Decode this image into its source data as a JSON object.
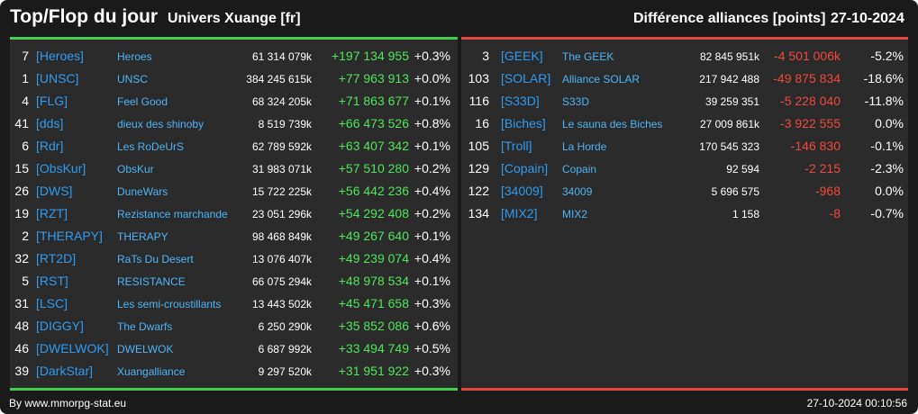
{
  "header": {
    "title": "Top/Flop du jour",
    "subtitle": "Univers Xuange [fr]",
    "diff_label": "Différence alliances [points]",
    "date": "27-10-2024"
  },
  "top": [
    {
      "rank": "7",
      "tag": "[Heroes]",
      "name": "Heroes",
      "points": "61 314 079k",
      "change": "+197 134 955",
      "pct": "+0.3%"
    },
    {
      "rank": "1",
      "tag": "[UNSC]",
      "name": "UNSC",
      "points": "384 245 615k",
      "change": "+77 963 913",
      "pct": "+0.0%"
    },
    {
      "rank": "4",
      "tag": "[FLG]",
      "name": "Feel Good",
      "points": "68 324 205k",
      "change": "+71 863 677",
      "pct": "+0.1%"
    },
    {
      "rank": "41",
      "tag": "[dds]",
      "name": "dieux des shinoby",
      "points": "8 519 739k",
      "change": "+66 473 526",
      "pct": "+0.8%"
    },
    {
      "rank": "6",
      "tag": "[Rdr]",
      "name": "Les RoDeUrS",
      "points": "62 789 592k",
      "change": "+63 407 342",
      "pct": "+0.1%"
    },
    {
      "rank": "15",
      "tag": "[ObsKur]",
      "name": "ObsKur",
      "points": "31 983 071k",
      "change": "+57 510 280",
      "pct": "+0.2%"
    },
    {
      "rank": "26",
      "tag": "[DWS]",
      "name": "DuneWars",
      "points": "15 722 225k",
      "change": "+56 442 236",
      "pct": "+0.4%"
    },
    {
      "rank": "19",
      "tag": "[RZT]",
      "name": "Rezistance marchande",
      "points": "23 051 296k",
      "change": "+54 292 408",
      "pct": "+0.2%"
    },
    {
      "rank": "2",
      "tag": "[THERAPY]",
      "name": "THERAPY",
      "points": "98 468 849k",
      "change": "+49 267 640",
      "pct": "+0.1%"
    },
    {
      "rank": "32",
      "tag": "[RT2D]",
      "name": "RaTs Du Desert",
      "points": "13 076 407k",
      "change": "+49 239 074",
      "pct": "+0.4%"
    },
    {
      "rank": "5",
      "tag": "[RST]",
      "name": "RESISTANCE",
      "points": "66 075 294k",
      "change": "+48 978 534",
      "pct": "+0.1%"
    },
    {
      "rank": "31",
      "tag": "[LSC]",
      "name": "Les semi-croustillants",
      "points": "13 443 502k",
      "change": "+45 471 658",
      "pct": "+0.3%"
    },
    {
      "rank": "48",
      "tag": "[DIGGY]",
      "name": "The Dwarfs",
      "points": "6 250 290k",
      "change": "+35 852 086",
      "pct": "+0.6%"
    },
    {
      "rank": "46",
      "tag": "[DWELWOK]",
      "name": "DWELWOK",
      "points": "6 687 992k",
      "change": "+33 494 749",
      "pct": "+0.5%"
    },
    {
      "rank": "39",
      "tag": "[DarkStar]",
      "name": "Xuangalliance",
      "points": "9 297 520k",
      "change": "+31 951 922",
      "pct": "+0.3%"
    }
  ],
  "flop": [
    {
      "rank": "3",
      "tag": "[GEEK]",
      "name": "The GEEK",
      "points": "82 845 951k",
      "change": "-4 501 006k",
      "pct": "-5.2%"
    },
    {
      "rank": "103",
      "tag": "[SOLAR]",
      "name": "Alliance SOLAR",
      "points": "217 942 488",
      "change": "-49 875 834",
      "pct": "-18.6%"
    },
    {
      "rank": "116",
      "tag": "[S33D]",
      "name": "S33D",
      "points": "39 259 351",
      "change": "-5 228 040",
      "pct": "-11.8%"
    },
    {
      "rank": "16",
      "tag": "[Biches]",
      "name": "Le sauna des Biches",
      "points": "27 009 861k",
      "change": "-3 922 555",
      "pct": "0.0%"
    },
    {
      "rank": "105",
      "tag": "[Troll]",
      "name": "La Horde",
      "points": "170 545 323",
      "change": "-146 830",
      "pct": "-0.1%"
    },
    {
      "rank": "129",
      "tag": "[Copain]",
      "name": "Copain",
      "points": "92 594",
      "change": "-2 215",
      "pct": "-2.3%"
    },
    {
      "rank": "122",
      "tag": "[34009]",
      "name": "34009",
      "points": "5 696 575",
      "change": "-968",
      "pct": "0.0%"
    },
    {
      "rank": "134",
      "tag": "[MIX2]",
      "name": "MIX2",
      "points": "1 158",
      "change": "-8",
      "pct": "-0.7%"
    }
  ],
  "footer": {
    "source": "By www.mmorpg-stat.eu",
    "timestamp": "27-10-2024 00:10:56"
  },
  "colors": {
    "background": "#1a1a1a",
    "panel": "#2b2b2b",
    "gain": "#4fe55a",
    "loss": "#f0483c",
    "tag": "#2f9bf0",
    "name": "#4fb4f5",
    "top_rule": "#46cc4f",
    "flop_rule": "#e4463c"
  }
}
